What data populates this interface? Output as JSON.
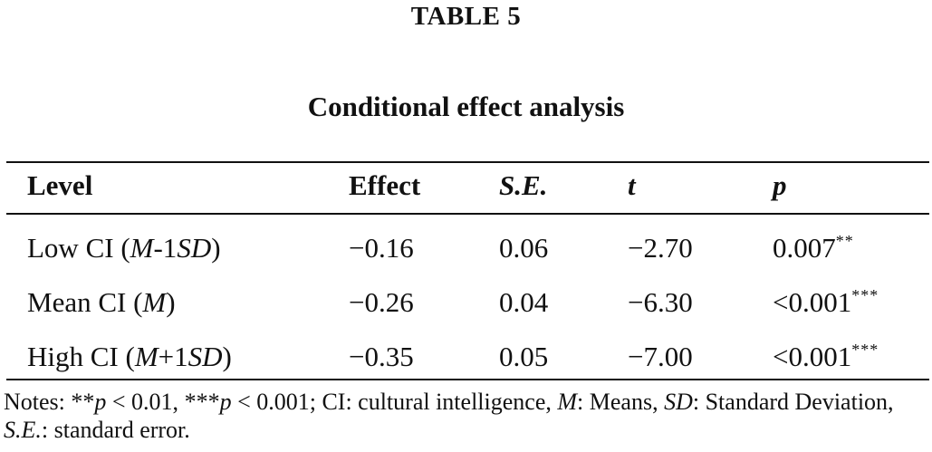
{
  "table_label": "TABLE 5",
  "title": "Conditional effect analysis",
  "columns": [
    "Level",
    "Effect",
    "S.E.",
    "t",
    "p"
  ],
  "rows": [
    {
      "level_prefix": "Low CI (",
      "level_m": "M",
      "level_mid": "-1",
      "level_sd": "SD",
      "level_suffix": ")",
      "effect": "−0.16",
      "se": "0.06",
      "t": "−2.70",
      "p": "0.007",
      "sig": "**"
    },
    {
      "level_prefix": "Mean CI (",
      "level_m": "M",
      "level_mid": "",
      "level_sd": "",
      "level_suffix": ")",
      "effect": "−0.26",
      "se": "0.04",
      "t": "−6.30",
      "p": "<0.001",
      "sig": "***"
    },
    {
      "level_prefix": "High CI (",
      "level_m": "M",
      "level_mid": "+1",
      "level_sd": "SD",
      "level_suffix": ")",
      "effect": "−0.35",
      "se": "0.05",
      "t": "−7.00",
      "p": "<0.001",
      "sig": "***"
    }
  ],
  "notes": {
    "lead": "Notes: ",
    "stars2": "**",
    "p1": "p",
    "text1": " < 0.01, ",
    "stars3": "***",
    "p2": "p",
    "text2": " < 0.001; CI: cultural intelligence, ",
    "m": "M",
    "text3": ": Means, ",
    "sd": "SD",
    "text4": ": Standard Deviation, ",
    "se": "S.E.",
    "text5": ": standard error."
  }
}
